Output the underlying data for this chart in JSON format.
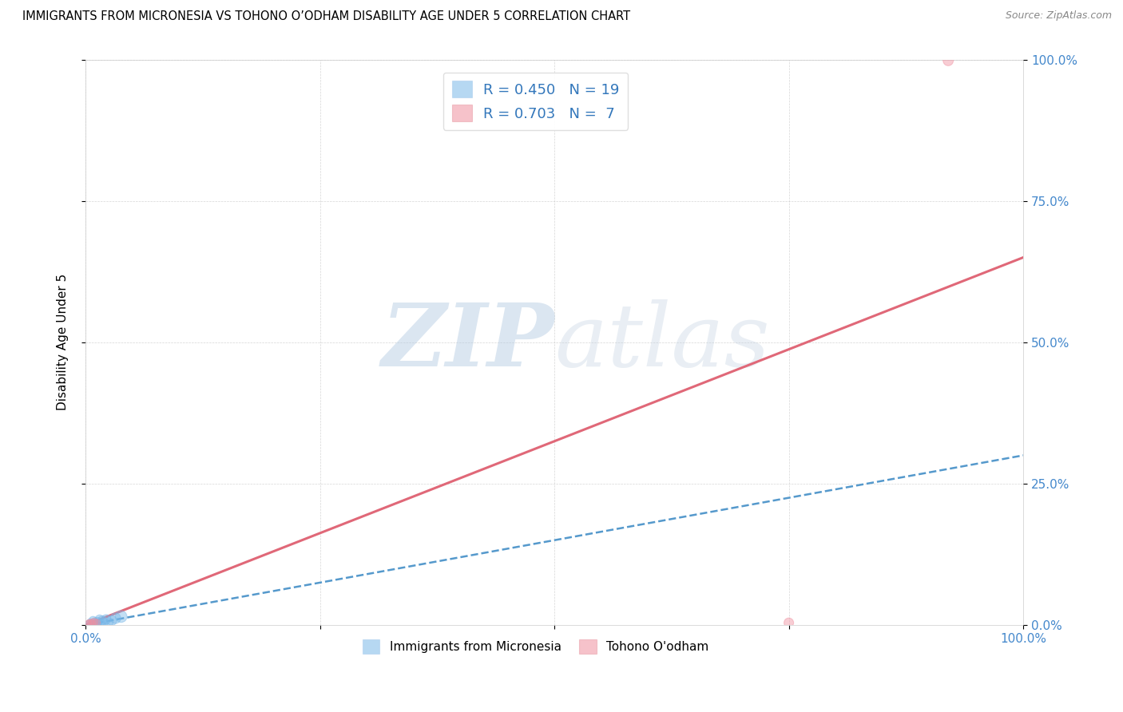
{
  "title": "IMMIGRANTS FROM MICRONESIA VS TOHONO O’ODHAM DISABILITY AGE UNDER 5 CORRELATION CHART",
  "source": "Source: ZipAtlas.com",
  "ylabel": "Disability Age Under 5",
  "xticklabels": [
    "0.0%",
    "",
    "",
    "",
    "100.0%"
  ],
  "yticklabels_right": [
    "0.0%",
    "25.0%",
    "50.0%",
    "75.0%",
    "100.0%"
  ],
  "xlim": [
    0.0,
    1.0
  ],
  "ylim": [
    0.0,
    1.0
  ],
  "blue_R": 0.45,
  "blue_N": 19,
  "pink_R": 0.703,
  "pink_N": 7,
  "blue_color": "#7ab8e8",
  "pink_color": "#f090a0",
  "trend_blue_color": "#5599cc",
  "trend_pink_color": "#e06878",
  "watermark_zip": "ZIP",
  "watermark_atlas": "atlas",
  "legend_label_blue": "Immigrants from Micronesia",
  "legend_label_pink": "Tohono O'odham",
  "blue_scatter_x": [
    0.003,
    0.005,
    0.006,
    0.007,
    0.008,
    0.009,
    0.01,
    0.011,
    0.012,
    0.013,
    0.015,
    0.016,
    0.018,
    0.02,
    0.022,
    0.025,
    0.028,
    0.032,
    0.038
  ],
  "blue_scatter_y": [
    0.003,
    0.005,
    0.002,
    0.004,
    0.008,
    0.003,
    0.006,
    0.004,
    0.002,
    0.006,
    0.01,
    0.004,
    0.008,
    0.005,
    0.01,
    0.005,
    0.008,
    0.012,
    0.015
  ],
  "blue_scatter_sizes": [
    25,
    40,
    30,
    35,
    55,
    30,
    50,
    45,
    35,
    60,
    65,
    50,
    70,
    55,
    75,
    60,
    80,
    90,
    110
  ],
  "pink_scatter_x": [
    0.003,
    0.005,
    0.007,
    0.009,
    0.012,
    0.75,
    0.92
  ],
  "pink_scatter_y": [
    0.003,
    0.004,
    0.003,
    0.005,
    0.004,
    0.004,
    0.998
  ],
  "pink_scatter_sizes": [
    35,
    40,
    45,
    50,
    40,
    75,
    85
  ],
  "blue_line_x": [
    0.0,
    1.0
  ],
  "blue_line_y": [
    0.0,
    0.3
  ],
  "pink_line_x": [
    0.0,
    1.0
  ],
  "pink_line_y": [
    0.0,
    0.65
  ]
}
